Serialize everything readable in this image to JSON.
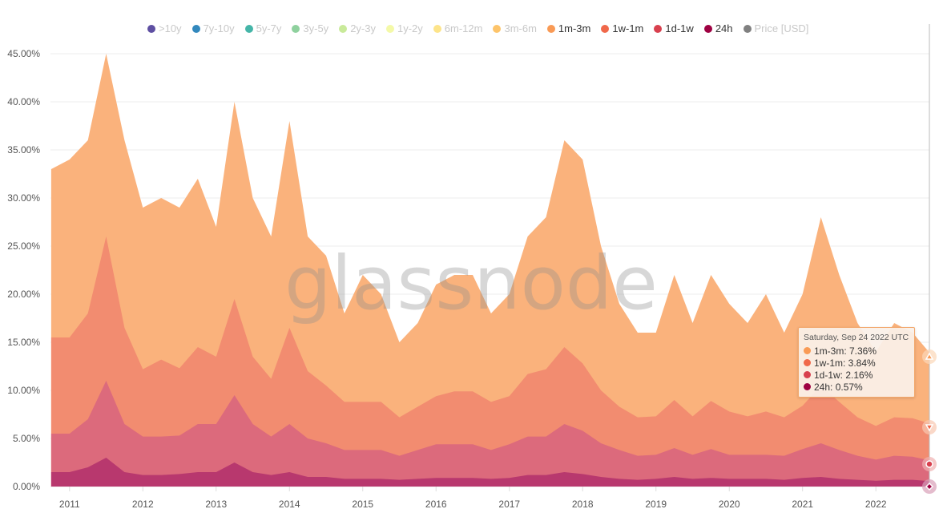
{
  "chart_data": {
    "type": "area",
    "stacked": true,
    "title": "",
    "xlabel": "",
    "ylabel": "",
    "ylim": [
      0,
      48
    ],
    "xlim": [
      2010.74,
      2022.73
    ],
    "y_ticks": [
      "0.00%",
      "5.00%",
      "10.00%",
      "15.00%",
      "20.00%",
      "25.00%",
      "30.00%",
      "35.00%",
      "40.00%",
      "45.00%"
    ],
    "y_tick_values": [
      0,
      5,
      10,
      15,
      20,
      25,
      30,
      35,
      40,
      45
    ],
    "x_ticks": [
      "2011",
      "2012",
      "2013",
      "2014",
      "2015",
      "2016",
      "2017",
      "2018",
      "2019",
      "2020",
      "2021",
      "2022"
    ],
    "x_tick_values": [
      2011,
      2012,
      2013,
      2014,
      2015,
      2016,
      2017,
      2018,
      2019,
      2020,
      2021,
      2022
    ],
    "grid": true,
    "watermark": "glassnode",
    "legend_position": "top",
    "legend": [
      {
        "name": ">10y",
        "color": "#5e4fa2",
        "active": false
      },
      {
        "name": "7y-10y",
        "color": "#3288bd",
        "active": false
      },
      {
        "name": "5y-7y",
        "color": "#45b5a8",
        "active": false
      },
      {
        "name": "3y-5y",
        "color": "#8fd19e",
        "active": false
      },
      {
        "name": "2y-3y",
        "color": "#c9ea9a",
        "active": false
      },
      {
        "name": "1y-2y",
        "color": "#f4f9a8",
        "active": false
      },
      {
        "name": "6m-12m",
        "color": "#fde48a",
        "active": false
      },
      {
        "name": "3m-6m",
        "color": "#fdc46a",
        "active": false
      },
      {
        "name": "1m-3m",
        "color": "#f99a55",
        "active": true
      },
      {
        "name": "1w-1m",
        "color": "#f0684a",
        "active": true
      },
      {
        "name": "1d-1w",
        "color": "#d8404e",
        "active": true
      },
      {
        "name": "24h",
        "color": "#9e0142",
        "active": true
      },
      {
        "name": "Price [USD]",
        "color": "#808080",
        "active": false
      }
    ],
    "x": [
      2010.75,
      2011.0,
      2011.25,
      2011.5,
      2011.75,
      2012.0,
      2012.25,
      2012.5,
      2012.75,
      2013.0,
      2013.25,
      2013.5,
      2013.75,
      2014.0,
      2014.25,
      2014.5,
      2014.75,
      2015.0,
      2015.25,
      2015.5,
      2015.75,
      2016.0,
      2016.25,
      2016.5,
      2016.75,
      2017.0,
      2017.25,
      2017.5,
      2017.75,
      2018.0,
      2018.25,
      2018.5,
      2018.75,
      2019.0,
      2019.25,
      2019.5,
      2019.75,
      2020.0,
      2020.25,
      2020.5,
      2020.75,
      2021.0,
      2021.25,
      2021.5,
      2021.75,
      2022.0,
      2022.25,
      2022.5,
      2022.73
    ],
    "series": [
      {
        "name": "24h",
        "fill": "#b8386e",
        "values": [
          1.5,
          1.5,
          2,
          3,
          1.5,
          1.2,
          1.2,
          1.3,
          1.5,
          1.5,
          2.5,
          1.5,
          1.2,
          1.5,
          1,
          1,
          0.8,
          0.8,
          0.8,
          0.7,
          0.8,
          0.9,
          0.9,
          0.9,
          0.8,
          0.9,
          1.2,
          1.2,
          1.5,
          1.3,
          1,
          0.8,
          0.7,
          0.8,
          1,
          0.8,
          0.9,
          0.8,
          0.8,
          0.8,
          0.7,
          0.9,
          1,
          0.8,
          0.7,
          0.6,
          0.7,
          0.7,
          0.57
        ]
      },
      {
        "name": "1d-1w",
        "fill": "#dc6a7c",
        "values": [
          4,
          4,
          5,
          8,
          5,
          4,
          4,
          4,
          5,
          5,
          7,
          5,
          4,
          5,
          4,
          3.5,
          3,
          3,
          3,
          2.5,
          3,
          3.5,
          3.5,
          3.5,
          3,
          3.5,
          4,
          4,
          5,
          4.5,
          3.5,
          3,
          2.5,
          2.5,
          3,
          2.5,
          3,
          2.5,
          2.5,
          2.5,
          2.5,
          3,
          3.5,
          3,
          2.5,
          2.2,
          2.5,
          2.4,
          2.16
        ]
      },
      {
        "name": "1w-1m",
        "fill": "#f28c70",
        "values": [
          10,
          10,
          11,
          15,
          10,
          7,
          8,
          7,
          8,
          7,
          10,
          7,
          6,
          10,
          7,
          6,
          5,
          5,
          5,
          4,
          4.5,
          5,
          5.5,
          5.5,
          5,
          5,
          6.5,
          7,
          8,
          7,
          5.5,
          4.5,
          4,
          4,
          5,
          4,
          5,
          4.5,
          4,
          4.5,
          4,
          4.5,
          6,
          5,
          4,
          3.5,
          4,
          4,
          3.84
        ]
      },
      {
        "name": "1m-3m",
        "fill": "#fab27c",
        "values": [
          17.5,
          18.5,
          18,
          19,
          19.5,
          16.8,
          16.8,
          16.7,
          17.5,
          13.5,
          20.5,
          16.5,
          14.8,
          21.5,
          14,
          13.5,
          9.2,
          13.2,
          11.2,
          7.8,
          8.7,
          11.6,
          12.1,
          12.1,
          9.2,
          10.6,
          14.3,
          15.8,
          21.5,
          21.2,
          15,
          10.7,
          8.8,
          8.7,
          13,
          9.7,
          13.1,
          11.2,
          9.7,
          12.2,
          8.8,
          11.6,
          17.5,
          13.2,
          9.8,
          7.7,
          9.8,
          8.9,
          7.36
        ]
      }
    ]
  },
  "tooltip": {
    "date": "Saturday, Sep 24 2022 UTC",
    "rows": [
      {
        "label": "1m-3m: 7.36%",
        "color": "#f99a55"
      },
      {
        "label": "1w-1m: 3.84%",
        "color": "#f0684a"
      },
      {
        "label": "1d-1w: 2.16%",
        "color": "#d8404e"
      },
      {
        "label": "24h: 0.57%",
        "color": "#9e0142"
      }
    ]
  }
}
